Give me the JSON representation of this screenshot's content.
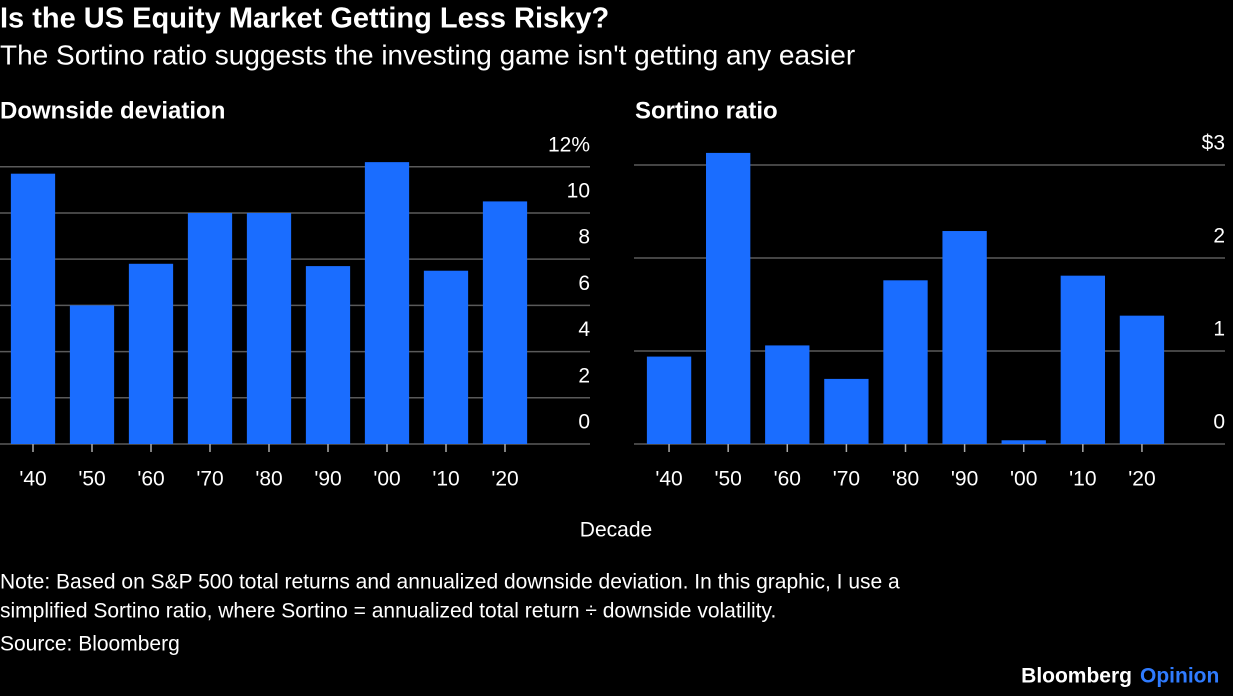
{
  "title": "Is the US Equity Market Getting Less Risky?",
  "subtitle": "The Sortino ratio suggests the investing game isn't getting any easier",
  "xlabel": "Decade",
  "note": [
    "Note: Based on S&P 500 total returns and annualized downside deviation. In this graphic, I use a",
    "simplified Sortino ratio, where Sortino = annualized total return ÷ downside volatility."
  ],
  "source": "Source: Bloomberg",
  "brand": {
    "name": "Bloomberg",
    "suffix": "Opinion"
  },
  "chart_data": [
    {
      "type": "bar",
      "title": "Downside deviation",
      "categories": [
        "'40",
        "'50",
        "'60",
        "'70",
        "'80",
        "'90",
        "'00",
        "'10",
        "'20"
      ],
      "values": [
        11.7,
        6.0,
        7.8,
        10.0,
        10.0,
        7.7,
        12.2,
        7.5,
        10.5
      ],
      "color": "#1a6dff",
      "ylim": [
        0,
        12.5
      ],
      "yticks": [
        0,
        2,
        4,
        6,
        8,
        10,
        {
          "value": 12,
          "label": "12%"
        }
      ],
      "grid": true
    },
    {
      "type": "bar",
      "title": "Sortino ratio",
      "categories": [
        "'40",
        "'50",
        "'60",
        "'70",
        "'80",
        "'90",
        "'00",
        "'10",
        "'20"
      ],
      "values": [
        0.94,
        3.13,
        1.06,
        0.7,
        1.76,
        2.29,
        0.04,
        1.81,
        1.38
      ],
      "color": "#1a6dff",
      "ylim": [
        0,
        3.2
      ],
      "yticks": [
        0,
        1,
        2,
        {
          "value": 3,
          "label": "$3"
        }
      ],
      "grid": true
    }
  ]
}
